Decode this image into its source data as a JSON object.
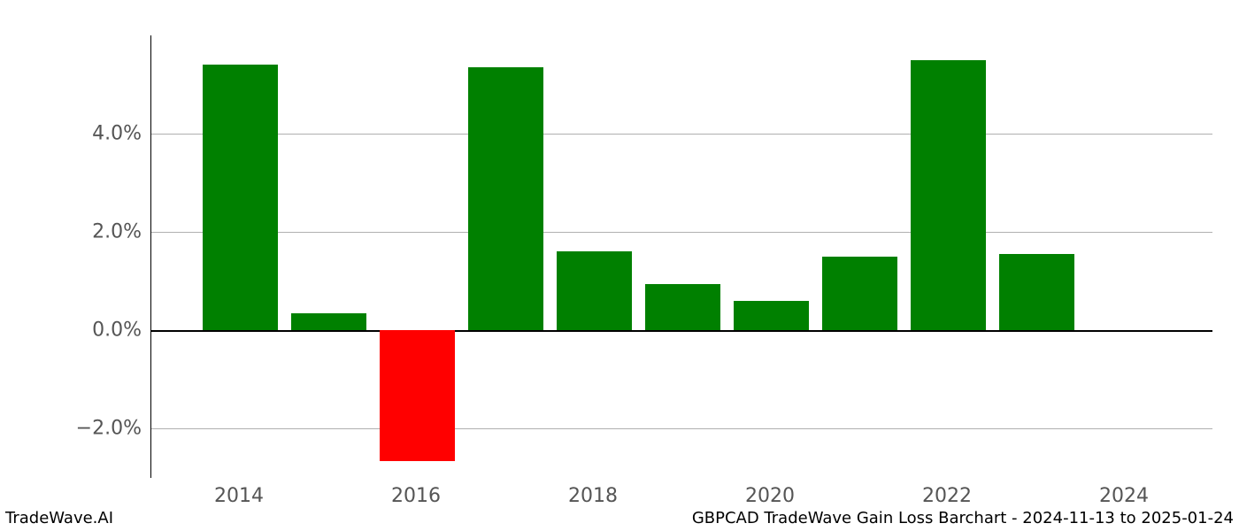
{
  "chart": {
    "type": "bar",
    "years": [
      2014,
      2015,
      2016,
      2017,
      2018,
      2019,
      2020,
      2021,
      2022,
      2023
    ],
    "values_percent": [
      5.4,
      0.35,
      -2.65,
      5.35,
      1.6,
      0.95,
      0.6,
      1.5,
      5.5,
      1.55
    ],
    "positive_color": "#008000",
    "negative_color": "#ff0000",
    "background_color": "#ffffff",
    "grid_color": "#b0b0b0",
    "axis_color": "#000000",
    "label_color": "#555555",
    "x_range": [
      2013,
      2025
    ],
    "x_ticks": [
      2014,
      2016,
      2018,
      2020,
      2022,
      2024
    ],
    "y_range_percent": [
      -3.0,
      6.0
    ],
    "y_ticks_percent": [
      -2.0,
      0.0,
      2.0,
      4.0
    ],
    "y_tick_labels": [
      "−2.0%",
      "0.0%",
      "2.0%",
      "4.0%"
    ],
    "bar_width_years": 0.85,
    "tick_label_fontsize": 22,
    "footer_fontsize": 18
  },
  "footer": {
    "left": "TradeWave.AI",
    "right": "GBPCAD TradeWave Gain Loss Barchart - 2024-11-13 to 2025-01-24"
  }
}
